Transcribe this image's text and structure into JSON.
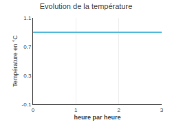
{
  "chart_data": {
    "type": "line",
    "title": "Evolution de la température",
    "xlabel": "heure par heure",
    "ylabel": "Température en °C",
    "x": [
      0,
      3
    ],
    "values": [
      0.9,
      0.9
    ],
    "color": "#55bbdd",
    "xlim": [
      0,
      3
    ],
    "ylim": [
      -0.1,
      1.1
    ],
    "xticks": [
      0,
      1,
      2,
      3
    ],
    "yticks": [
      -0.1,
      0.3,
      0.7,
      1.1
    ],
    "grid": "x"
  }
}
